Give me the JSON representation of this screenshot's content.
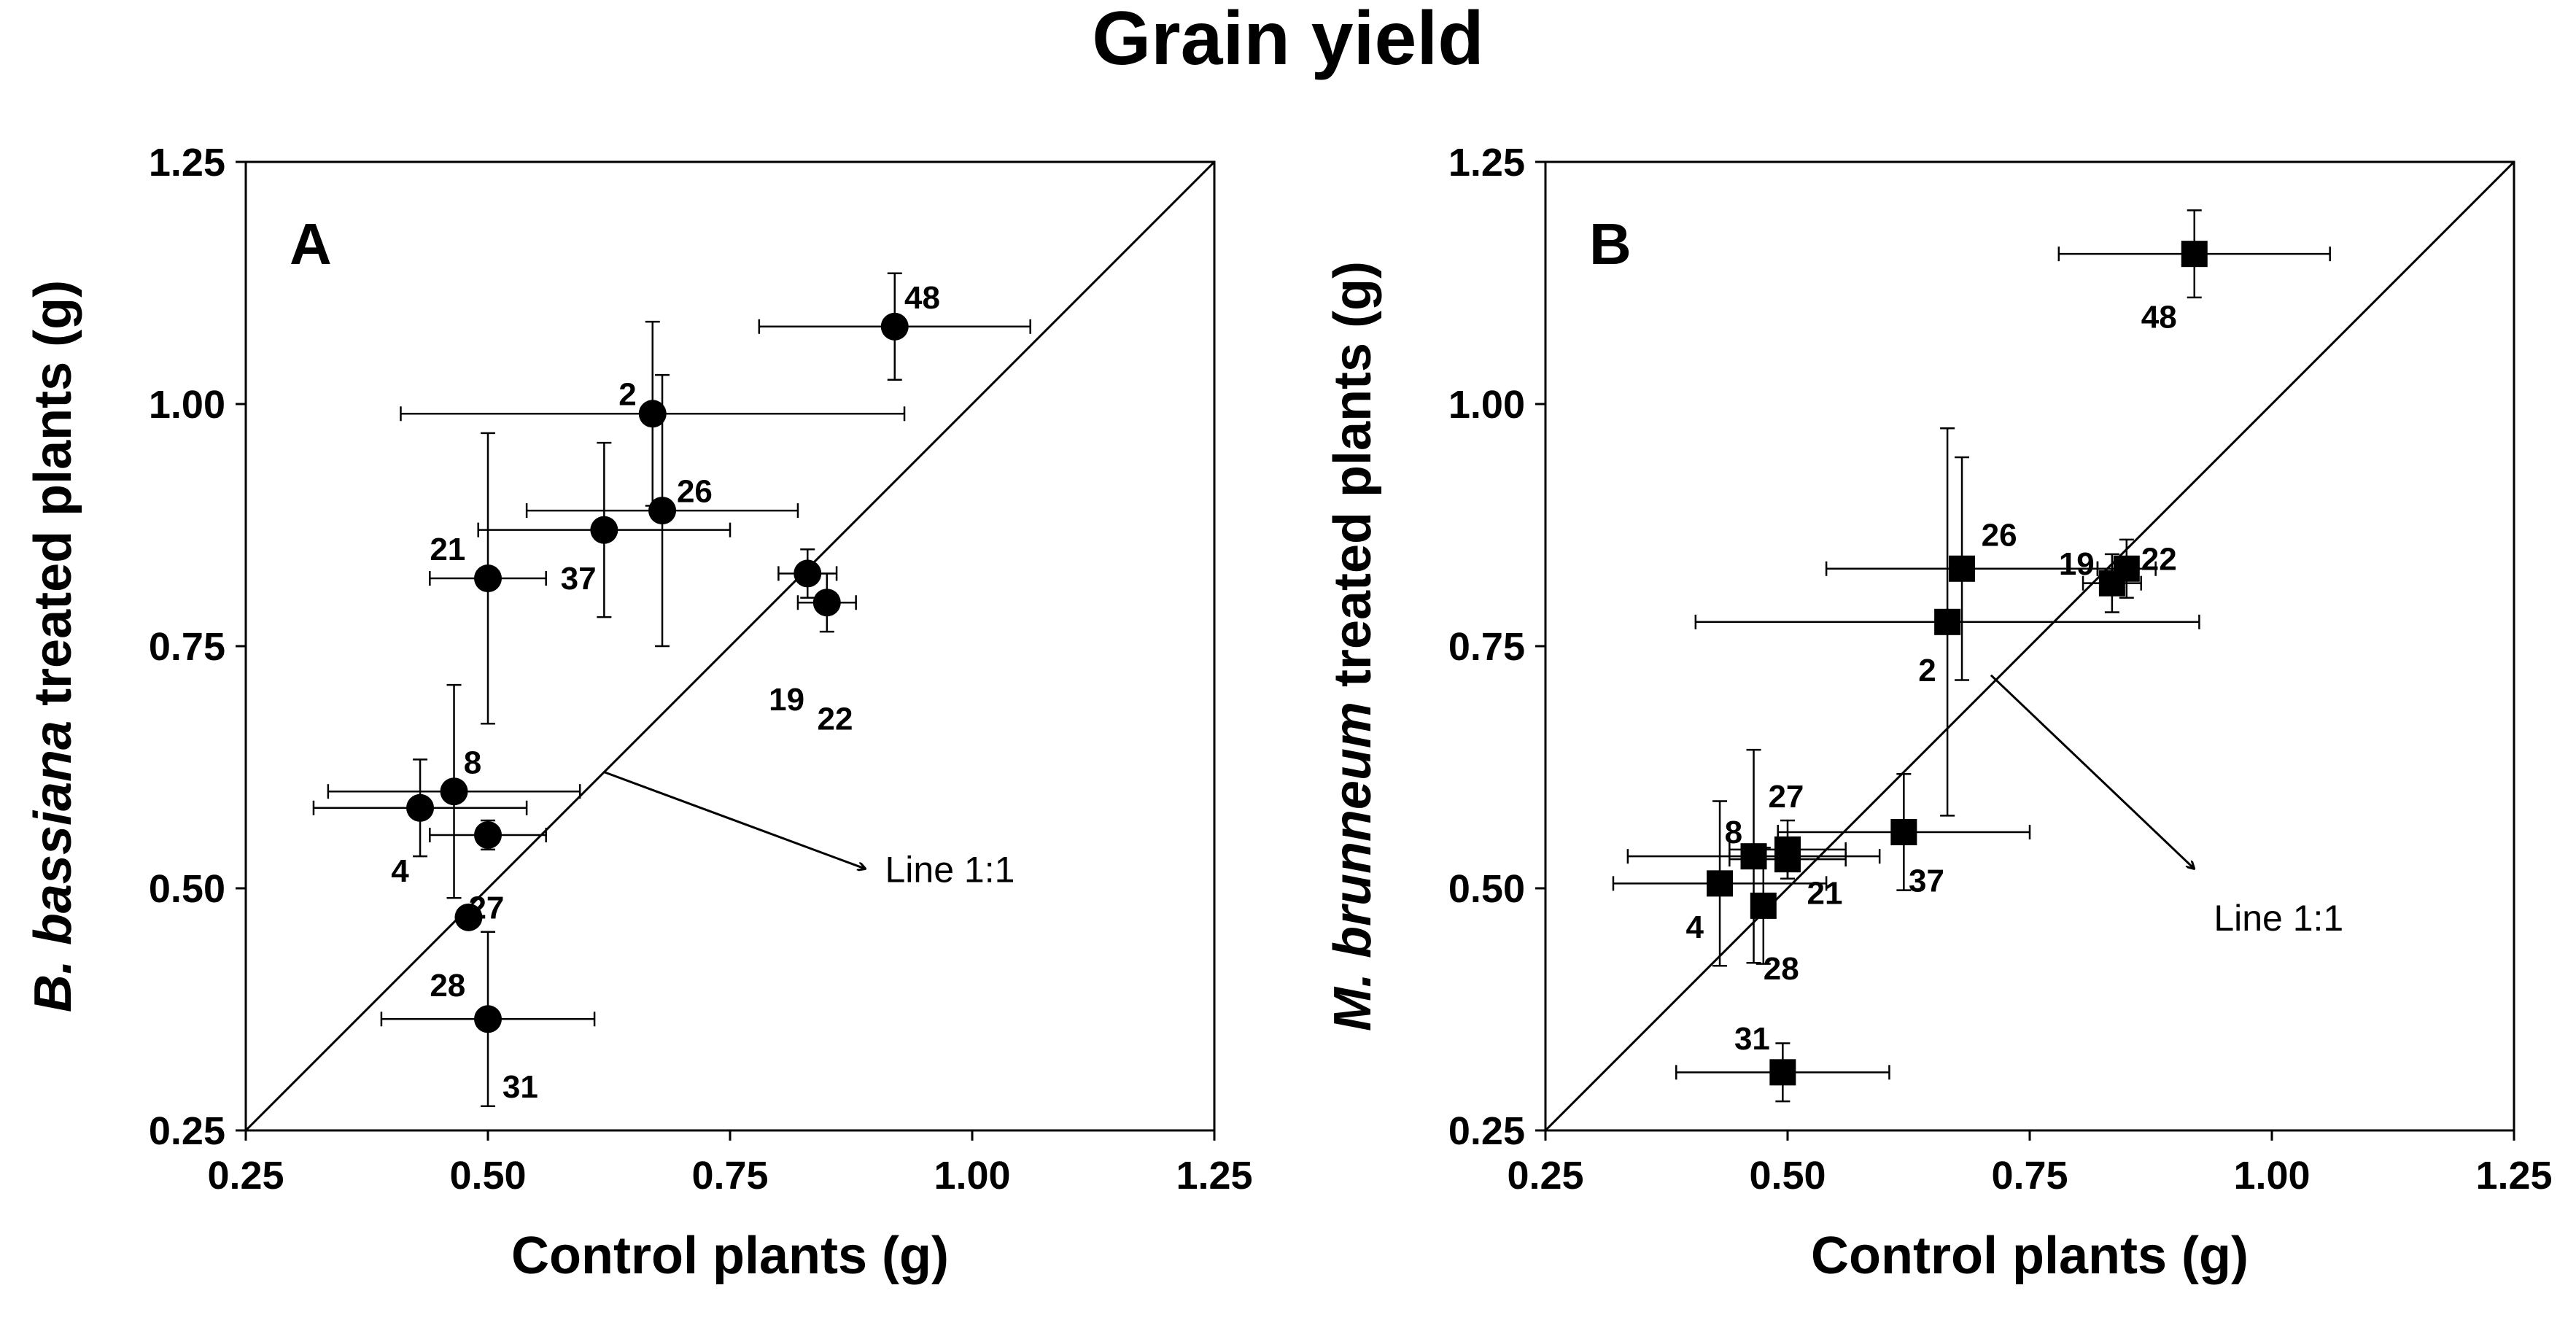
{
  "figure_title": "Grain yield",
  "chart_data": [
    {
      "type": "scatter",
      "panel_label": "A",
      "title": "",
      "xlabel": "Control plants (g)",
      "ylabel_italic": "B. bassiana",
      "ylabel_rest": " treated plants (g)",
      "xlim": [
        0.25,
        1.25
      ],
      "ylim": [
        0.25,
        1.25
      ],
      "xticks": [
        "0.25",
        "0.50",
        "0.75",
        "1.00",
        "1.25"
      ],
      "yticks": [
        "0.25",
        "0.50",
        "0.75",
        "1.00",
        "1.25"
      ],
      "marker": "circle",
      "reference_line": "1:1",
      "annotation": {
        "text": "Line 1:1",
        "arrow_from": [
          0.62,
          0.62
        ],
        "arrow_to": [
          0.89,
          0.52
        ],
        "text_at": [
          0.91,
          0.52
        ]
      },
      "points": [
        {
          "label": "48",
          "x": 0.92,
          "y": 1.08,
          "xerr": [
            0.14,
            0.14
          ],
          "yerr": [
            0.055,
            0.055
          ],
          "label_dx": 0.01,
          "label_dy": 0.03
        },
        {
          "label": "2",
          "x": 0.67,
          "y": 0.99,
          "xerr": [
            0.26,
            0.26
          ],
          "yerr": [
            0.095,
            0.095
          ],
          "label_dx": -0.035,
          "label_dy": 0.02
        },
        {
          "label": "26",
          "x": 0.68,
          "y": 0.89,
          "xerr": [
            0.14,
            0.14
          ],
          "yerr": [
            0.14,
            0.14
          ],
          "label_dx": 0.015,
          "label_dy": 0.02
        },
        {
          "label": "37",
          "x": 0.62,
          "y": 0.87,
          "xerr": [
            0.13,
            0.13
          ],
          "yerr": [
            0.09,
            0.09
          ],
          "label_dx": -0.045,
          "label_dy": -0.05
        },
        {
          "label": "21",
          "x": 0.5,
          "y": 0.82,
          "xerr": [
            0.06,
            0.06
          ],
          "yerr": [
            0.15,
            0.15
          ],
          "label_dx": -0.06,
          "label_dy": 0.03
        },
        {
          "label": "19",
          "x": 0.83,
          "y": 0.825,
          "xerr": [
            0.03,
            0.03
          ],
          "yerr": [
            0.025,
            0.025
          ],
          "label_dx": -0.04,
          "label_dy": -0.13
        },
        {
          "label": "22",
          "x": 0.85,
          "y": 0.795,
          "xerr": [
            0.03,
            0.03
          ],
          "yerr": [
            0.03,
            0.03
          ],
          "label_dx": -0.01,
          "label_dy": -0.12
        },
        {
          "label": "8",
          "x": 0.465,
          "y": 0.6,
          "xerr": [
            0.13,
            0.13
          ],
          "yerr": [
            0.11,
            0.11
          ],
          "label_dx": 0.01,
          "label_dy": 0.03
        },
        {
          "label": "4",
          "x": 0.43,
          "y": 0.583,
          "xerr": [
            0.11,
            0.11
          ],
          "yerr": [
            0.05,
            0.05
          ],
          "label_dx": -0.03,
          "label_dy": -0.065
        },
        {
          "label": "27",
          "x": 0.5,
          "y": 0.555,
          "xerr": [
            0.06,
            0.06
          ],
          "yerr": [
            0.015,
            0.015
          ],
          "label_dx": -0.02,
          "label_dy": -0.075
        },
        {
          "label": "28",
          "x": 0.48,
          "y": 0.47,
          "xerr": [
            0.0,
            0.0
          ],
          "yerr": [
            0.0,
            0.0
          ],
          "label_dx": -0.04,
          "label_dy": -0.07
        },
        {
          "label": "31",
          "x": 0.5,
          "y": 0.365,
          "xerr": [
            0.11,
            0.11
          ],
          "yerr": [
            0.09,
            0.09
          ],
          "label_dx": 0.015,
          "label_dy": -0.07
        }
      ]
    },
    {
      "type": "scatter",
      "panel_label": "B",
      "title": "",
      "xlabel": "Control plants (g)",
      "ylabel_italic": "M. brunneum",
      "ylabel_rest": " treated plants (g)",
      "xlim": [
        0.25,
        1.25
      ],
      "ylim": [
        0.25,
        1.25
      ],
      "xticks": [
        "0.25",
        "0.50",
        "0.75",
        "1.00",
        "1.25"
      ],
      "yticks": [
        "0.25",
        "0.50",
        "0.75",
        "1.00",
        "1.25"
      ],
      "marker": "square",
      "reference_line": "1:1",
      "annotation": {
        "text": "Line 1:1",
        "arrow_from": [
          0.71,
          0.72
        ],
        "arrow_to": [
          0.92,
          0.52
        ],
        "text_at": [
          0.94,
          0.47
        ]
      },
      "points": [
        {
          "label": "48",
          "x": 0.92,
          "y": 1.155,
          "xerr": [
            0.14,
            0.14
          ],
          "yerr": [
            0.045,
            0.045
          ],
          "label_dx": -0.055,
          "label_dy": -0.065
        },
        {
          "label": "26",
          "x": 0.68,
          "y": 0.83,
          "xerr": [
            0.14,
            0.14
          ],
          "yerr": [
            0.115,
            0.115
          ],
          "label_dx": 0.02,
          "label_dy": 0.035
        },
        {
          "label": "19",
          "x": 0.835,
          "y": 0.815,
          "xerr": [
            0.03,
            0.03
          ],
          "yerr": [
            0.03,
            0.03
          ],
          "label_dx": -0.055,
          "label_dy": 0.02
        },
        {
          "label": "22",
          "x": 0.85,
          "y": 0.83,
          "xerr": [
            0.03,
            0.03
          ],
          "yerr": [
            0.03,
            0.03
          ],
          "label_dx": 0.015,
          "label_dy": 0.01
        },
        {
          "label": "2",
          "x": 0.665,
          "y": 0.775,
          "xerr": [
            0.26,
            0.26
          ],
          "yerr": [
            0.2,
            0.2
          ],
          "label_dx": -0.03,
          "label_dy": -0.05
        },
        {
          "label": "37",
          "x": 0.62,
          "y": 0.558,
          "xerr": [
            0.13,
            0.13
          ],
          "yerr": [
            0.06,
            0.06
          ],
          "label_dx": 0.005,
          "label_dy": -0.05
        },
        {
          "label": "27",
          "x": 0.5,
          "y": 0.54,
          "xerr": [
            0.06,
            0.06
          ],
          "yerr": [
            0.03,
            0.03
          ],
          "label_dx": -0.02,
          "label_dy": 0.055
        },
        {
          "label": "8",
          "x": 0.465,
          "y": 0.533,
          "xerr": [
            0.13,
            0.13
          ],
          "yerr": [
            0.11,
            0.11
          ],
          "label_dx": -0.03,
          "label_dy": 0.025
        },
        {
          "label": "21",
          "x": 0.5,
          "y": 0.53,
          "xerr": [
            0.06,
            0.06
          ],
          "yerr": [
            0.02,
            0.02
          ],
          "label_dx": 0.02,
          "label_dy": -0.035
        },
        {
          "label": "4",
          "x": 0.43,
          "y": 0.505,
          "xerr": [
            0.11,
            0.11
          ],
          "yerr": [
            0.085,
            0.085
          ],
          "label_dx": -0.035,
          "label_dy": -0.045
        },
        {
          "label": "28",
          "x": 0.475,
          "y": 0.482,
          "xerr": [
            0.0,
            0.0
          ],
          "yerr": [
            0.06,
            0.06
          ],
          "label_dx": 0.0,
          "label_dy": -0.065
        },
        {
          "label": "31",
          "x": 0.495,
          "y": 0.31,
          "xerr": [
            0.11,
            0.11
          ],
          "yerr": [
            0.03,
            0.03
          ],
          "label_dx": -0.05,
          "label_dy": 0.035
        }
      ]
    }
  ]
}
